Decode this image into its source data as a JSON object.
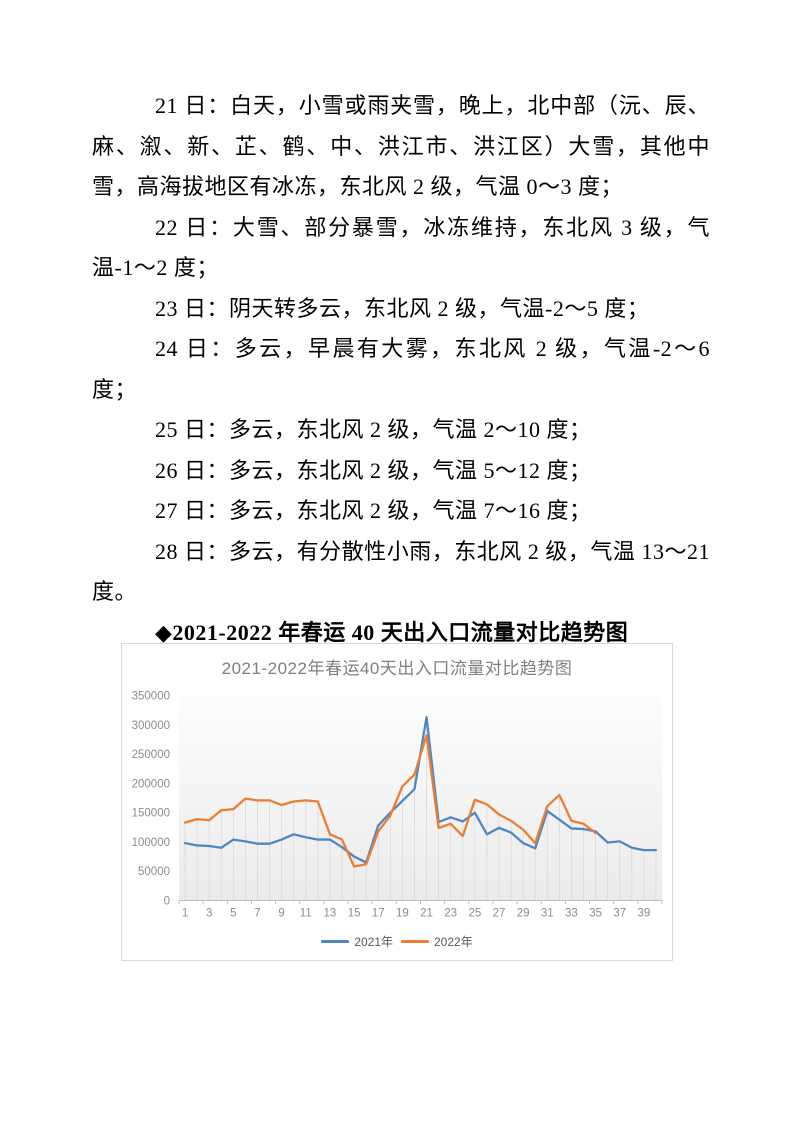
{
  "document": {
    "paragraphs": [
      "21 日：白天，小雪或雨夹雪，晚上，北中部（沅、辰、麻、溆、新、芷、鹤、中、洪江市、洪江区）大雪，其他中雪，高海拔地区有冰冻，东北风 2 级，气温 0～3 度；",
      "22 日：大雪、部分暴雪，冰冻维持，东北风 3 级，气温-1～2 度；",
      "23 日：阴天转多云，东北风 2 级，气温-2～5 度；",
      "24 日：多云，早晨有大雾，东北风 2 级，气温-2～6 度；",
      "25 日：多云，东北风 2 级，气温 2～10 度；",
      "26 日：多云，东北风 2 级，气温 5～12 度；",
      "27 日：多云，东北风 2 级，气温 7～16 度；",
      "28 日：多云，有分散性小雨，东北风 2 级，气温 13～21 度。"
    ],
    "heading": "◆2021-2022 年春运 40 天出入口流量对比趋势图"
  },
  "chart_data": {
    "type": "line",
    "title": "2021-2022年春运40天出入口流量对比趋势图",
    "xlabel": "",
    "ylabel": "",
    "x": [
      1,
      2,
      3,
      4,
      5,
      6,
      7,
      8,
      9,
      10,
      11,
      12,
      13,
      14,
      15,
      16,
      17,
      18,
      19,
      20,
      21,
      22,
      23,
      24,
      25,
      26,
      27,
      28,
      29,
      30,
      31,
      32,
      33,
      34,
      35,
      36,
      37,
      38,
      39,
      40
    ],
    "x_ticks": [
      1,
      3,
      5,
      7,
      9,
      11,
      13,
      15,
      17,
      19,
      21,
      23,
      25,
      27,
      29,
      31,
      33,
      35,
      37,
      39
    ],
    "y_ticks": [
      0,
      50000,
      100000,
      150000,
      200000,
      250000,
      300000,
      350000
    ],
    "ylim": [
      0,
      350000
    ],
    "grid": "vertical-droplines",
    "legend_position": "bottom",
    "series": [
      {
        "name": "2021年",
        "color": "#4E87C6",
        "values": [
          98000,
          94000,
          93000,
          90000,
          104000,
          101000,
          97000,
          97000,
          104000,
          113000,
          108000,
          104000,
          104000,
          91000,
          75000,
          65000,
          128000,
          150000,
          170000,
          190000,
          313000,
          134000,
          142000,
          135000,
          150000,
          113000,
          124000,
          116000,
          98000,
          89000,
          153000,
          138000,
          123000,
          122000,
          118000,
          99000,
          101000,
          90000,
          86000,
          86000
        ]
      },
      {
        "name": "2022年",
        "color": "#ED7D31",
        "values": [
          133000,
          139000,
          137000,
          154000,
          156000,
          174000,
          171000,
          171000,
          163000,
          169000,
          171000,
          169000,
          113000,
          104000,
          58000,
          62000,
          118000,
          145000,
          195000,
          215000,
          282000,
          124000,
          131000,
          110000,
          172000,
          164000,
          147000,
          136000,
          121000,
          98000,
          161000,
          180000,
          136000,
          131000,
          115000
        ]
      }
    ],
    "colors": {
      "axis": "#bfbfbf",
      "dropline": "#d9d9d9",
      "tick_text": "#8c8c8c",
      "title_text": "#7f7f7f",
      "legend_text": "#595959"
    }
  }
}
